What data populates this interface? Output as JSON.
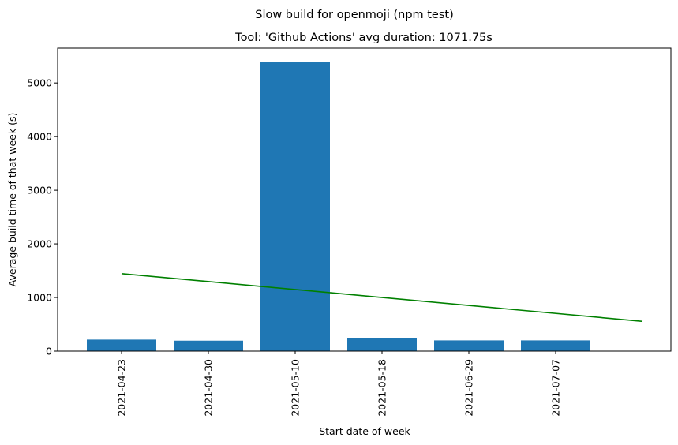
{
  "chart_data": {
    "type": "bar",
    "suptitle": "Slow build for openmoji (npm test)",
    "title": "Tool: 'Github Actions' avg duration: 1071.75s",
    "xlabel": "Start date of week",
    "ylabel": "Average build time of that week (s)",
    "categories": [
      "2021-04-23",
      "2021-04-30",
      "2021-05-10",
      "2021-05-18",
      "2021-06-29",
      "2021-07-07"
    ],
    "values": [
      215,
      195,
      5385,
      240,
      200,
      200
    ],
    "bar_color": "#1f77b4",
    "ylim": [
      0,
      5650
    ],
    "yticks": [
      0,
      1000,
      2000,
      3000,
      4000,
      5000
    ],
    "trend_line": {
      "color": "#008000",
      "start": {
        "category": "2021-04-23",
        "value": 1445
      },
      "end": {
        "category": "",
        "value": 555
      }
    },
    "grid": false,
    "legend": "none"
  }
}
